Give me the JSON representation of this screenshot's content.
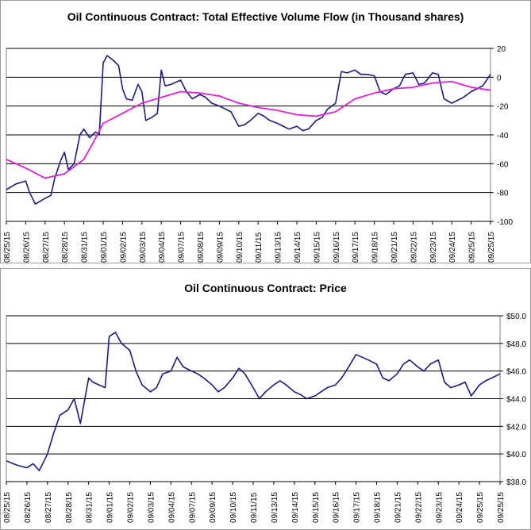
{
  "chart_data": [
    {
      "type": "line",
      "title": "Oil Continuous Contract: Total Effective Volume Flow (in Thousand shares)",
      "ylim": [
        -100,
        20
      ],
      "yticks": [
        "20",
        "0",
        "-20",
        "-40",
        "-60",
        "-80",
        "-100"
      ],
      "categories": [
        "08/25/15",
        "08/26/15",
        "08/27/15",
        "08/28/15",
        "08/31/15",
        "09/01/15",
        "09/02/15",
        "09/03/15",
        "09/04/15",
        "09/07/15",
        "09/08/15",
        "09/09/15",
        "09/10/15",
        "09/11/15",
        "09/13/15",
        "09/14/15",
        "09/15/15",
        "09/16/15",
        "09/17/15",
        "09/18/15",
        "09/21/15",
        "09/22/15",
        "09/23/15",
        "09/24/15",
        "09/25/15",
        "09/25/15"
      ],
      "series": [
        {
          "color": "#1a1a80",
          "x": [
            0,
            0.5,
            1,
            1.2,
            1.5,
            2,
            2.3,
            2.5,
            2.8,
            3,
            3.2,
            3.5,
            3.8,
            4,
            4.1,
            4.3,
            4.6,
            4.8,
            5,
            5.2,
            5.5,
            5.8,
            6,
            6.2,
            6.5,
            6.8,
            7,
            7.2,
            7.5,
            7.8,
            8,
            8.2,
            8.5,
            9,
            9.3,
            9.6,
            10,
            10.3,
            10.6,
            11,
            11.3,
            11.6,
            12,
            12.3,
            12.6,
            13,
            13.3,
            13.6,
            14,
            14.3,
            14.6,
            15,
            15.3,
            15.6,
            16,
            16.3,
            16.6,
            17,
            17.3,
            17.6,
            18,
            18.3,
            18.6,
            19,
            19.3,
            19.6,
            20,
            20.3,
            20.6,
            21,
            21.3,
            21.6,
            22,
            22.3,
            22.6,
            23,
            23.3,
            23.6,
            24,
            24.3,
            24.6,
            25
          ],
          "y": [
            -78,
            -74,
            -72,
            -80,
            -88,
            -84,
            -82,
            -70,
            -58,
            -52,
            -64,
            -60,
            -40,
            -36,
            -38,
            -42,
            -38,
            -40,
            10,
            15,
            12,
            8,
            -8,
            -15,
            -16,
            -5,
            -10,
            -30,
            -28,
            -25,
            5,
            -6,
            -5,
            -2,
            -10,
            -15,
            -12,
            -14,
            -18,
            -20,
            -22,
            -24,
            -34,
            -33,
            -30,
            -25,
            -27,
            -30,
            -32,
            -34,
            -36,
            -34,
            -37,
            -36,
            -30,
            -28,
            -22,
            -18,
            4,
            3,
            5,
            2,
            2,
            1,
            -10,
            -12,
            -8,
            -6,
            2,
            3,
            -5,
            -4,
            3,
            2,
            -15,
            -18,
            -16,
            -14,
            -10,
            -8,
            -6,
            2
          ]
        },
        {
          "color": "#e020d0",
          "x": [
            0,
            1,
            2,
            3,
            4,
            4.5,
            5,
            6,
            7,
            8,
            9,
            10,
            11,
            12,
            13,
            14,
            15,
            16,
            17,
            18,
            19,
            20,
            21,
            22,
            23,
            24,
            25
          ],
          "y": [
            -57,
            -63,
            -70,
            -67,
            -57,
            -45,
            -32,
            -25,
            -18,
            -14,
            -10,
            -11,
            -13,
            -18,
            -21,
            -23,
            -26,
            -27,
            -24,
            -15,
            -11,
            -8,
            -7,
            -4,
            -3,
            -7,
            -9
          ]
        }
      ]
    },
    {
      "type": "line",
      "title": "Oil Continuous Contract: Price",
      "ylim": [
        38,
        50
      ],
      "yticks": [
        "$50.0",
        "$48.0",
        "$46.0",
        "$44.0",
        "$42.0",
        "$40.0",
        "$38.0"
      ],
      "categories": [
        "08/25/15",
        "08/26/15",
        "08/27/15",
        "08/28/15",
        "08/31/15",
        "09/01/15",
        "09/02/15",
        "09/03/15",
        "09/04/15",
        "09/07/15",
        "09/09/15",
        "09/10/15",
        "09/11/15",
        "09/13/15",
        "09/14/15",
        "09/15/15",
        "09/16/15",
        "09/17/15",
        "09/18/15",
        "09/21/15",
        "09/22/15",
        "09/23/15",
        "09/24/15",
        "09/25/15",
        "09/25/15"
      ],
      "series": [
        {
          "color": "#1a1a80",
          "x": [
            0,
            0.5,
            1,
            1.3,
            1.6,
            2,
            2.3,
            2.6,
            3,
            3.3,
            3.6,
            4,
            4.2,
            4.5,
            4.8,
            5,
            5.3,
            5.6,
            6,
            6.3,
            6.6,
            7,
            7.3,
            7.6,
            8,
            8.3,
            8.6,
            9,
            9.3,
            9.6,
            10,
            10.3,
            10.6,
            11,
            11.3,
            11.6,
            12,
            12.3,
            12.6,
            13,
            13.3,
            13.6,
            14,
            14.3,
            14.6,
            15,
            15.3,
            15.6,
            16,
            16.3,
            16.6,
            17,
            17.3,
            17.6,
            18,
            18.3,
            18.6,
            19,
            19.3,
            19.6,
            20,
            20.3,
            20.6,
            21,
            21.3,
            21.6,
            22,
            22.3,
            22.6,
            23,
            23.3,
            23.6,
            24
          ],
          "y": [
            39.5,
            39.2,
            39.0,
            39.3,
            38.8,
            40.0,
            41.5,
            42.8,
            43.2,
            44.0,
            42.2,
            45.5,
            45.2,
            45.0,
            44.8,
            48.5,
            48.8,
            48.0,
            47.5,
            46.0,
            45.0,
            44.5,
            44.8,
            45.8,
            46.0,
            47.0,
            46.3,
            46.0,
            45.8,
            45.5,
            45.0,
            44.5,
            44.8,
            45.5,
            46.2,
            45.8,
            44.8,
            44.0,
            44.5,
            45.0,
            45.3,
            45.0,
            44.5,
            44.3,
            44.0,
            44.2,
            44.5,
            44.8,
            45.0,
            45.5,
            46.2,
            47.2,
            47.0,
            46.8,
            46.5,
            45.5,
            45.3,
            45.8,
            46.5,
            46.8,
            46.3,
            46.0,
            46.5,
            46.8,
            45.2,
            44.8,
            45.0,
            45.2,
            44.2,
            45.0,
            45.3,
            45.5,
            45.8
          ]
        }
      ]
    }
  ]
}
